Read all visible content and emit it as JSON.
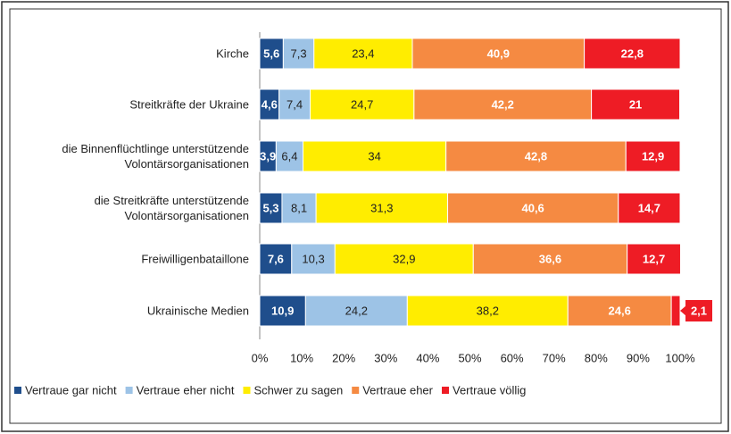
{
  "chart_data": {
    "type": "stacked_bar_horizontal",
    "categories": [
      "Kirche",
      "Streitkräfte der Ukraine",
      "die Binnenflüchtlinge unterstützende\nVolontärsorganisationen",
      "die Streitkräfte unterstützende\nVolontärsorganisationen",
      "Freiwilligenbataillone",
      "Ukrainische Medien"
    ],
    "series": [
      {
        "name": "Vertraue gar nicht",
        "color": "#1f4e8c",
        "values": [
          5.6,
          4.6,
          3.9,
          5.3,
          7.6,
          10.9
        ],
        "value_labels": [
          "5,6",
          "4,6",
          "3,9",
          "5,3",
          "7,6",
          "10,9"
        ]
      },
      {
        "name": "Vertraue eher nicht",
        "color": "#9dc3e6",
        "values": [
          7.3,
          7.4,
          6.4,
          8.1,
          10.3,
          24.2
        ],
        "value_labels": [
          "7,3",
          "7,4",
          "6,4",
          "8,1",
          "10,3",
          "24,2"
        ]
      },
      {
        "name": "Schwer zu sagen",
        "color": "#ffed00",
        "values": [
          23.4,
          24.7,
          34,
          31.3,
          32.9,
          38.2
        ],
        "value_labels": [
          "23,4",
          "24,7",
          "34",
          "31,3",
          "32,9",
          "38,2"
        ]
      },
      {
        "name": "Vertraue eher",
        "color": "#f58a42",
        "values": [
          40.9,
          42.2,
          42.8,
          40.6,
          36.6,
          24.6
        ],
        "value_labels": [
          "40,9",
          "42,2",
          "42,8",
          "40,6",
          "36,6",
          "24,6"
        ]
      },
      {
        "name": "Vertraue völlig",
        "color": "#ee1c25",
        "values": [
          22.8,
          21,
          12.9,
          14.7,
          12.7,
          2.1
        ],
        "value_labels": [
          "22,8",
          "21",
          "12,9",
          "14,7",
          "12,7",
          "2,1"
        ]
      }
    ],
    "xlim": [
      0,
      100
    ],
    "xticks": [
      {
        "value": 0,
        "label": "0%"
      },
      {
        "value": 10,
        "label": "10%"
      },
      {
        "value": 20,
        "label": "20%"
      },
      {
        "value": 30,
        "label": "30%"
      },
      {
        "value": 40,
        "label": "40%"
      },
      {
        "value": 50,
        "label": "50%"
      },
      {
        "value": 60,
        "label": "60%"
      },
      {
        "value": 70,
        "label": "70%"
      },
      {
        "value": 80,
        "label": "80%"
      },
      {
        "value": 90,
        "label": "90%"
      },
      {
        "value": 100,
        "label": "100%"
      }
    ],
    "legend": "bottom"
  }
}
